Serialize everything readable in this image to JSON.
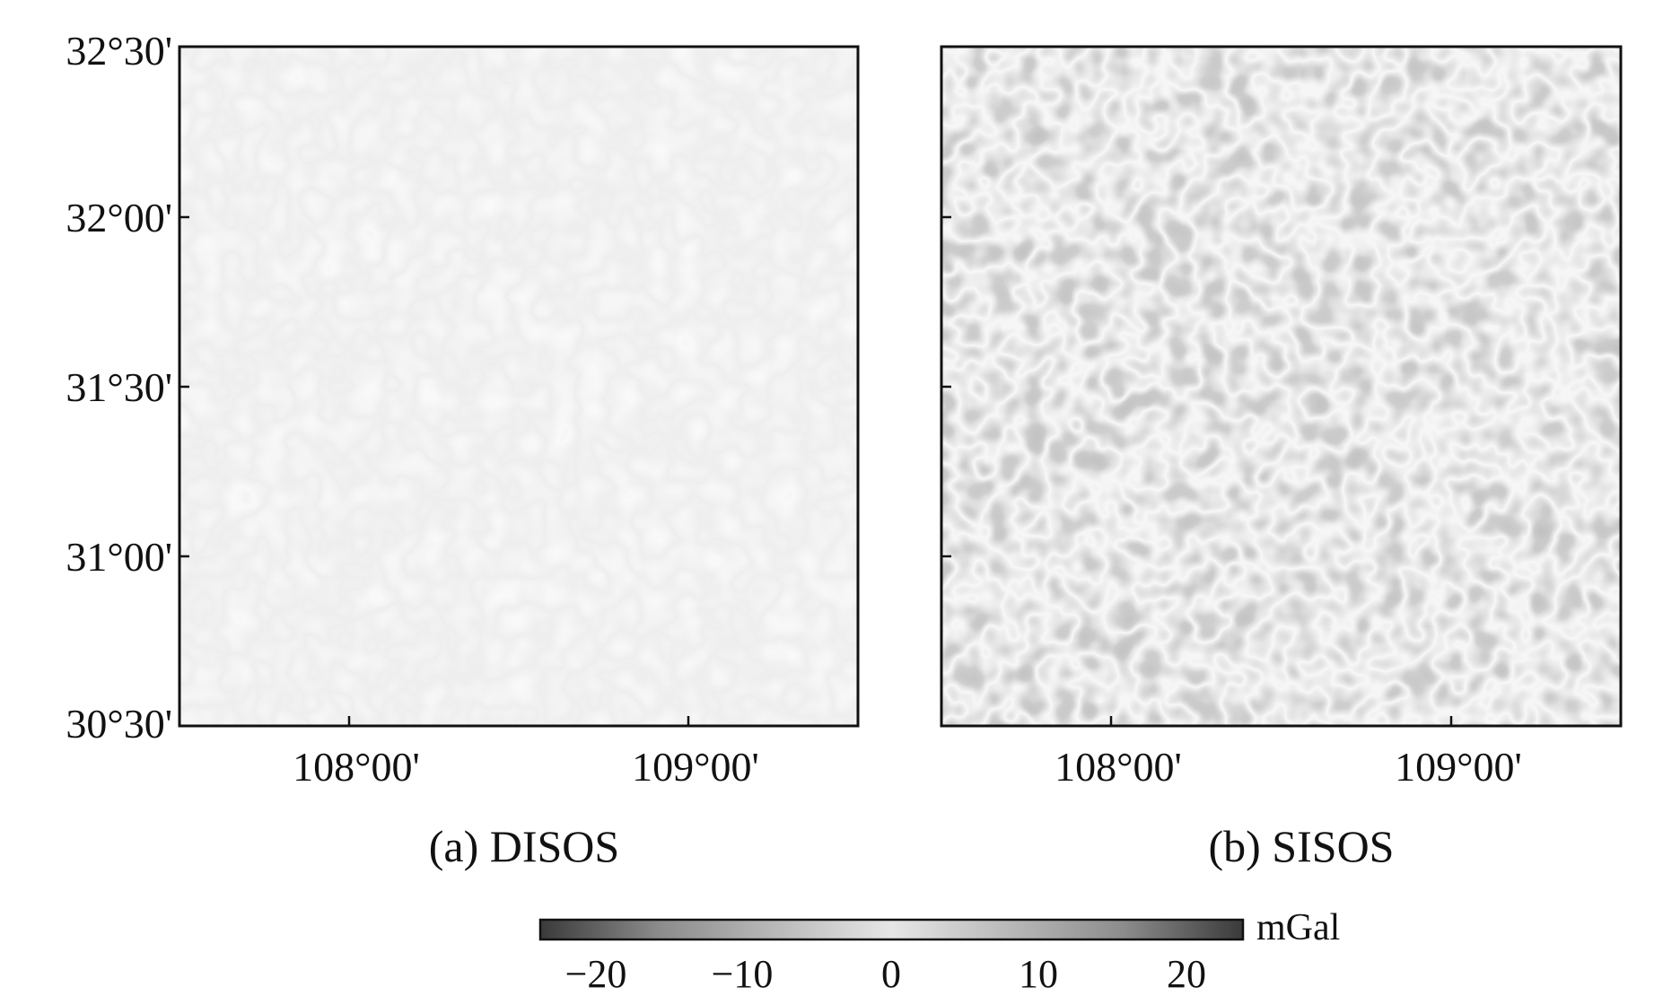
{
  "figure": {
    "panels": [
      {
        "id": "a",
        "caption": "(a) DISOS",
        "intensity": "low",
        "x_ticks": [
          "108°00'",
          "109°00'"
        ],
        "y_ticks": [
          "32°30'",
          "32°00'",
          "31°30'",
          "31°00'",
          "30°30'"
        ],
        "y_labels_shown": true
      },
      {
        "id": "b",
        "caption": "(b) SISOS",
        "intensity": "high",
        "x_ticks": [
          "108°00'",
          "109°00'"
        ],
        "y_ticks": [
          "32°30'",
          "32°00'",
          "31°30'",
          "31°00'",
          "30°30'"
        ],
        "y_labels_shown": false
      }
    ],
    "colorbar": {
      "unit": "mGal",
      "ticks": [
        "−20",
        "−10",
        "0",
        "10",
        "20"
      ],
      "range": [
        -25,
        25
      ],
      "colors": {
        "extreme": "#3a3a3a",
        "mid": "#e6e6e6",
        "mid_dark": "#8c8c8c"
      }
    }
  }
}
